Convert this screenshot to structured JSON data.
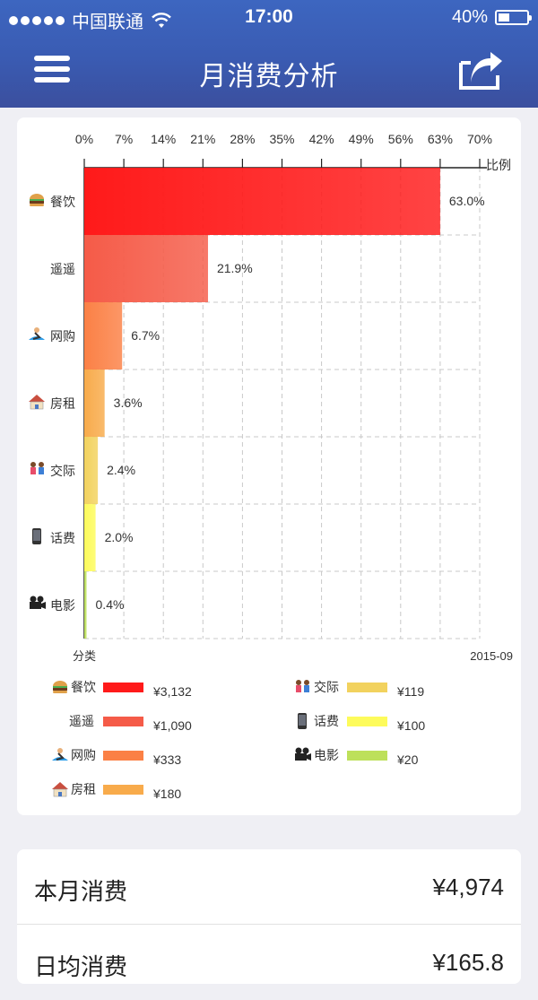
{
  "status_bar": {
    "carrier": "中国联通",
    "time": "17:00",
    "battery": "40%"
  },
  "nav": {
    "title": "月消费分析"
  },
  "chart_data": {
    "type": "bar",
    "orientation": "horizontal",
    "categories": [
      "餐饮",
      "遥遥",
      "网购",
      "房租",
      "交际",
      "话费",
      "电影"
    ],
    "category_icons": [
      "hamburger-icon",
      "",
      "surfer-icon",
      "house-icon",
      "couple-icon",
      "phone-icon",
      "movie-camera-icon"
    ],
    "values": [
      63.0,
      21.9,
      6.7,
      3.6,
      2.4,
      2.0,
      0.4
    ],
    "value_labels": [
      "63.0%",
      "21.9%",
      "6.7%",
      "3.6%",
      "2.4%",
      "2.0%",
      "0.4%"
    ],
    "amounts": [
      "¥3,132",
      "¥1,090",
      "¥333",
      "¥180",
      "¥119",
      "¥100",
      "¥20"
    ],
    "colors": [
      "#ff1a1a",
      "#f55b48",
      "#fb8045",
      "#f8ab4b",
      "#f2d25e",
      "#fdfb5b",
      "#bde05a"
    ],
    "tick_labels": [
      "0%",
      "7%",
      "14%",
      "21%",
      "28%",
      "35%",
      "42%",
      "49%",
      "56%",
      "63%",
      "70%"
    ],
    "xlim": [
      0,
      70
    ],
    "xlabel": "比例",
    "ylabel": "分类",
    "period": "2015-09",
    "grid": true,
    "legend_position": "bottom"
  },
  "summary": [
    {
      "label": "本月消费",
      "value": "¥4,974"
    },
    {
      "label": "日均消费",
      "value": "¥165.8"
    }
  ]
}
